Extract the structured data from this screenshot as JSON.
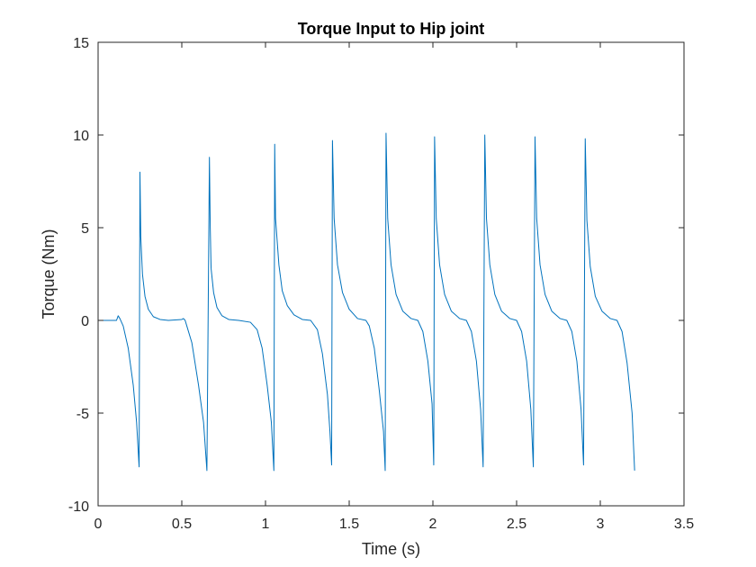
{
  "chart_data": {
    "type": "line",
    "title": "Torque Input to Hip joint",
    "xlabel": "Time (s)",
    "ylabel": "Torque (Nm)",
    "xlim": [
      0,
      3.5
    ],
    "ylim": [
      -10,
      15
    ],
    "xticks": [
      0,
      0.5,
      1,
      1.5,
      2,
      2.5,
      3,
      3.5
    ],
    "xtick_labels": [
      "0",
      "0.5",
      "1",
      "1.5",
      "2",
      "2.5",
      "3",
      "3.5"
    ],
    "yticks": [
      -10,
      -5,
      0,
      5,
      10,
      15
    ],
    "ytick_labels": [
      "-10",
      "-5",
      "0",
      "5",
      "10",
      "15"
    ],
    "grid": false,
    "legend": false,
    "line_color": "#0072BD",
    "series": [
      {
        "x": [
          0,
          0.11,
          0.12,
          0.13,
          0.15,
          0.18,
          0.21,
          0.23,
          0.245,
          0.25,
          0.255,
          0.265,
          0.28,
          0.3,
          0.33,
          0.37,
          0.42,
          0.5,
          0.51,
          0.52,
          0.53,
          0.56,
          0.6,
          0.63,
          0.65,
          0.665,
          0.67,
          0.675,
          0.69,
          0.71,
          0.74,
          0.78,
          0.84,
          0.91,
          0.95,
          0.98,
          1.01,
          1.035,
          1.05,
          1.055,
          1.06,
          1.08,
          1.1,
          1.13,
          1.17,
          1.22,
          1.27,
          1.31,
          1.34,
          1.37,
          1.385,
          1.395,
          1.4,
          1.41,
          1.43,
          1.46,
          1.5,
          1.55,
          1.6,
          1.62,
          1.65,
          1.68,
          1.705,
          1.715,
          1.72,
          1.73,
          1.75,
          1.78,
          1.82,
          1.87,
          1.91,
          1.94,
          1.97,
          1.995,
          2.005,
          2.01,
          2.02,
          2.04,
          2.07,
          2.11,
          2.16,
          2.2,
          2.23,
          2.26,
          2.285,
          2.3,
          2.31,
          2.32,
          2.34,
          2.37,
          2.41,
          2.46,
          2.5,
          2.53,
          2.56,
          2.585,
          2.6,
          2.61,
          2.62,
          2.64,
          2.67,
          2.71,
          2.76,
          2.8,
          2.83,
          2.86,
          2.885,
          2.9,
          2.91,
          2.92,
          2.94,
          2.97,
          3.01,
          3.06,
          3.1,
          3.13,
          3.16,
          3.19,
          3.205
        ],
        "y": [
          0,
          0,
          0.25,
          0.1,
          -0.3,
          -1.5,
          -3.5,
          -5.5,
          -7.9,
          8.0,
          4.5,
          2.5,
          1.3,
          0.6,
          0.2,
          0.05,
          0,
          0.05,
          0.1,
          0,
          -0.3,
          -1.2,
          -3.5,
          -5.5,
          -8.1,
          8.8,
          5.0,
          2.8,
          1.5,
          0.7,
          0.25,
          0.05,
          0,
          -0.1,
          -0.5,
          -1.5,
          -3.5,
          -5.5,
          -8.1,
          9.5,
          5.5,
          3.0,
          1.6,
          0.8,
          0.3,
          0.05,
          0,
          -0.5,
          -1.8,
          -4.0,
          -6.0,
          -7.8,
          9.7,
          5.5,
          3.0,
          1.5,
          0.6,
          0.1,
          0,
          -0.3,
          -1.5,
          -3.8,
          -6.0,
          -8.1,
          10.1,
          5.5,
          3.0,
          1.4,
          0.5,
          0.1,
          0,
          -0.6,
          -2.2,
          -4.5,
          -7.8,
          9.9,
          5.5,
          3.0,
          1.4,
          0.5,
          0.1,
          0,
          -0.6,
          -2.2,
          -4.8,
          -7.9,
          10.0,
          5.5,
          3.0,
          1.4,
          0.5,
          0.1,
          0,
          -0.6,
          -2.2,
          -4.8,
          -7.9,
          9.9,
          5.5,
          3.0,
          1.4,
          0.5,
          0.1,
          0,
          -0.6,
          -2.2,
          -4.8,
          -7.8,
          9.8,
          5.4,
          2.9,
          1.3,
          0.5,
          0.1,
          0,
          -0.6,
          -2.3,
          -5.0,
          -8.1
        ]
      }
    ]
  }
}
